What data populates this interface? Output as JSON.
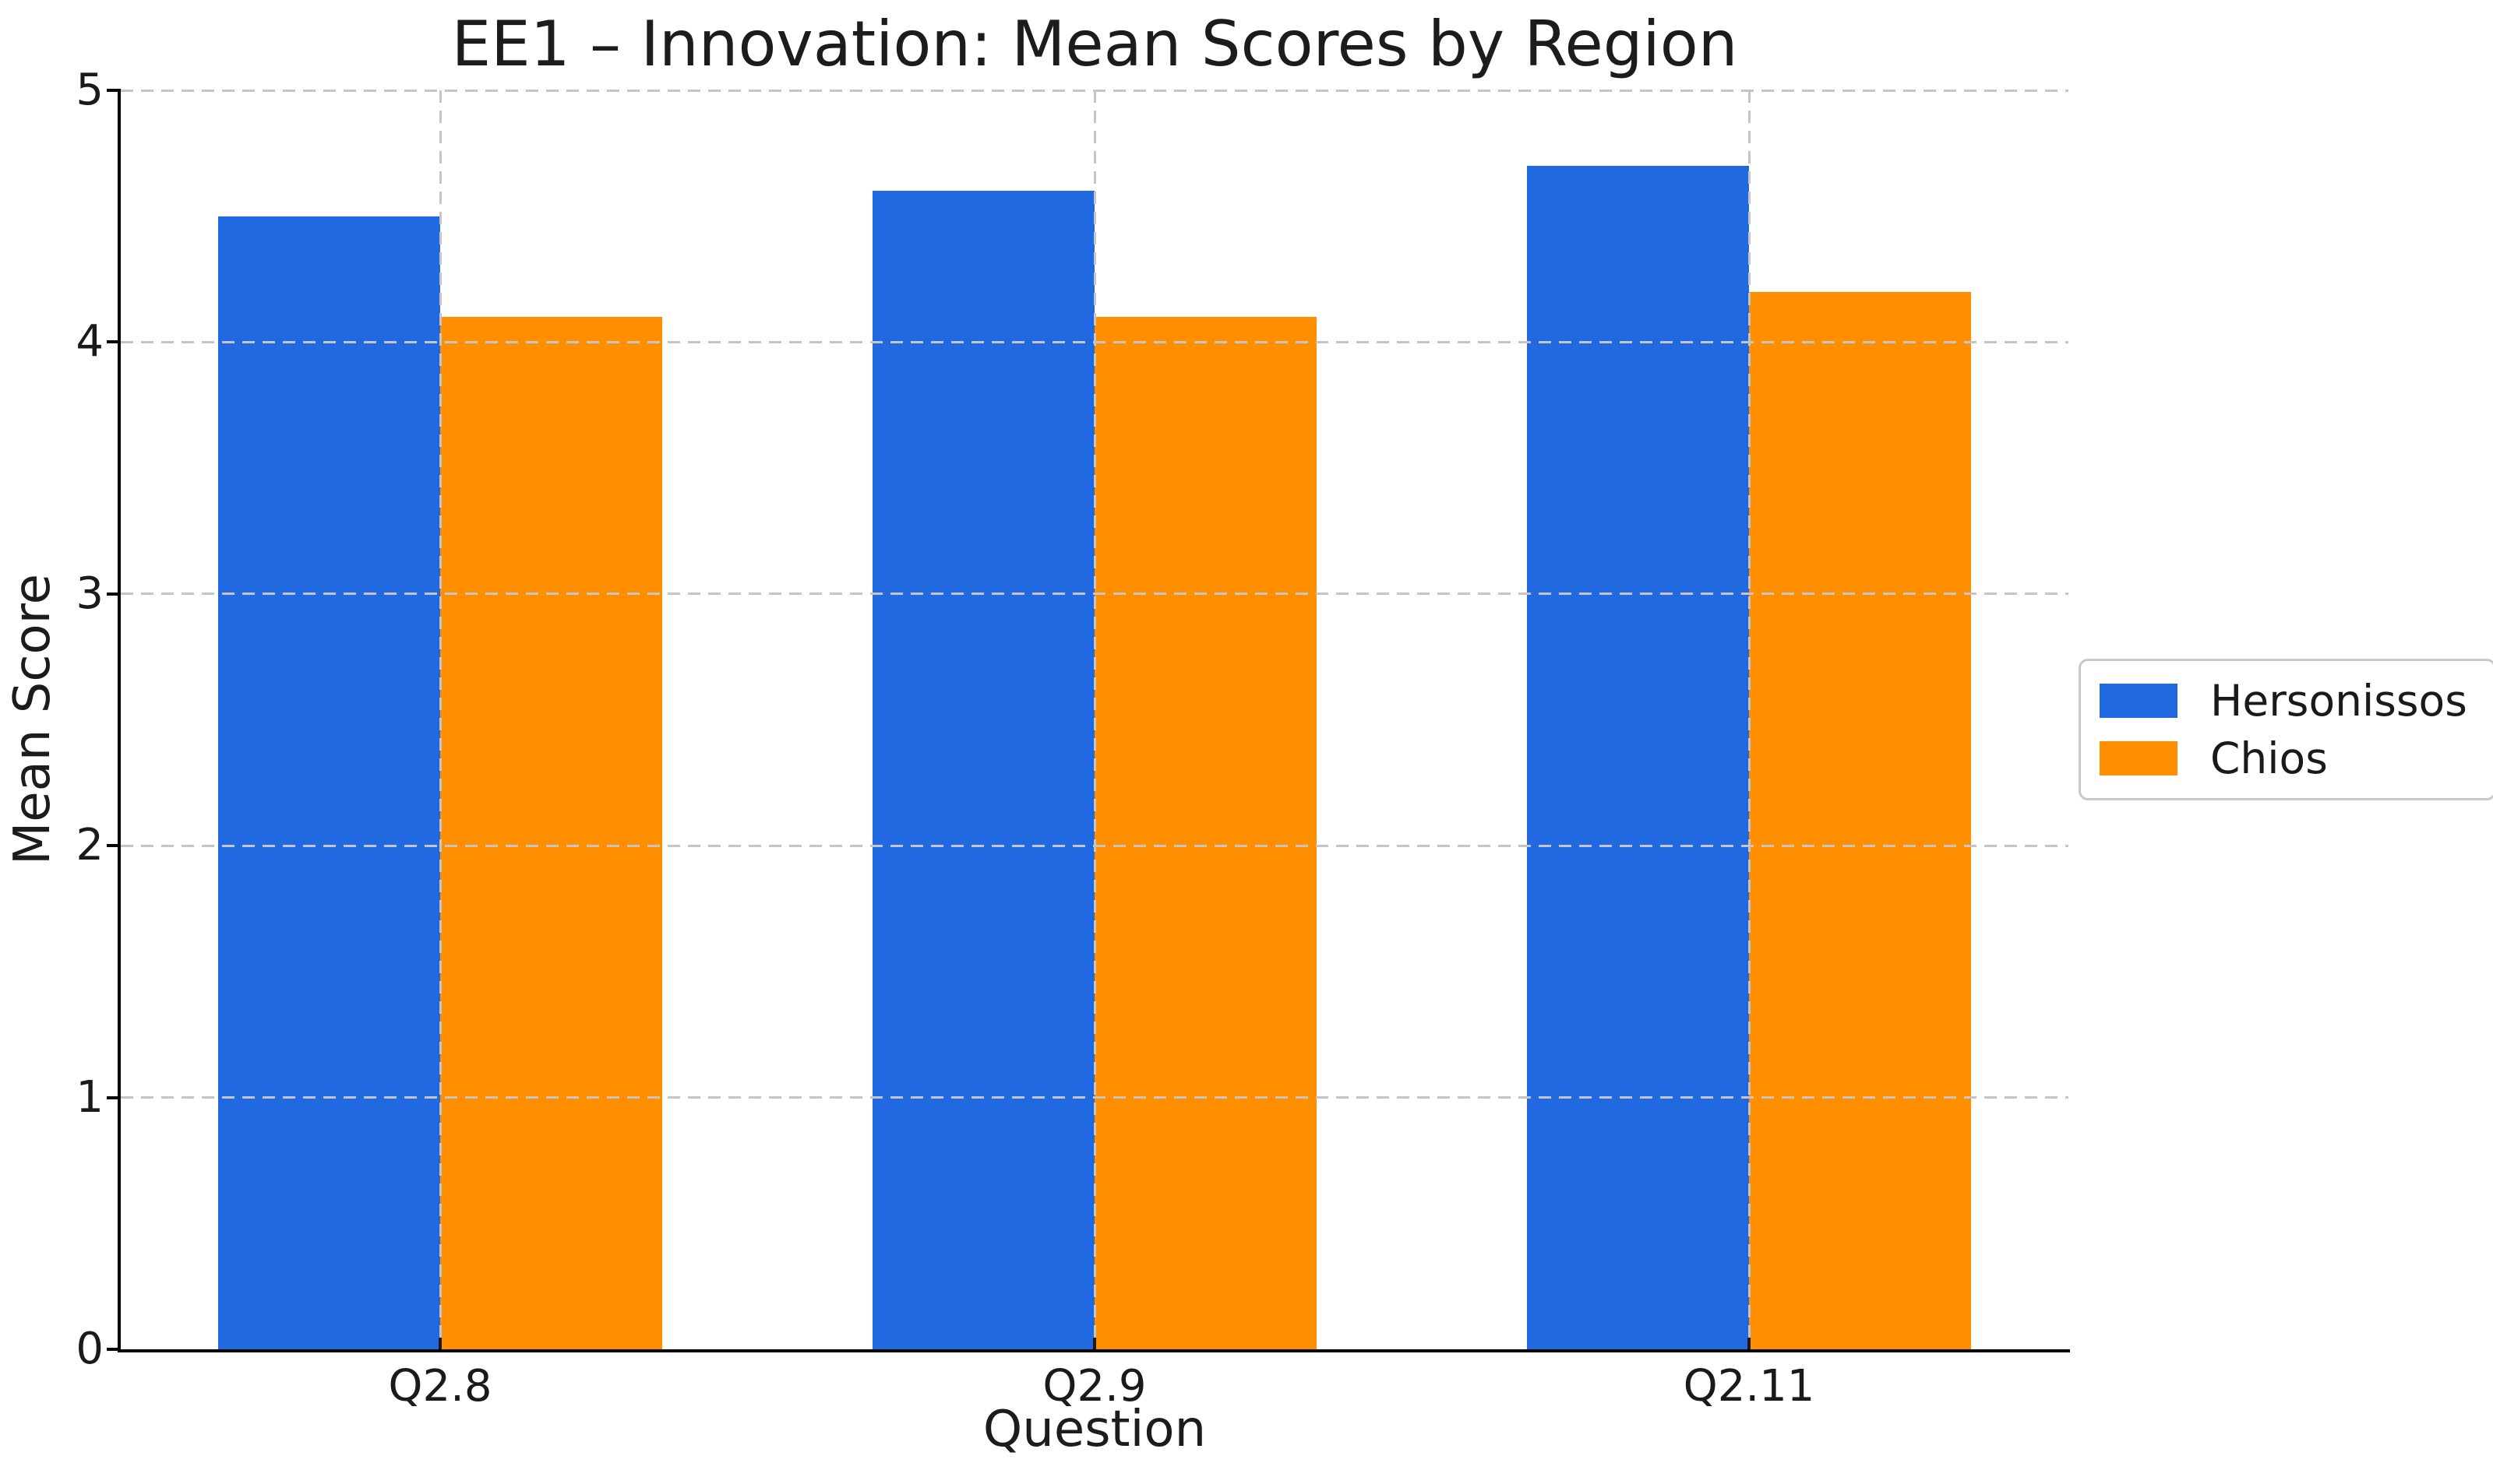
{
  "figure": {
    "background": "#ffffff"
  },
  "chart_data": {
    "type": "bar",
    "title": "EE1 – Innovation: Mean Scores by Region",
    "xlabel": "Question",
    "ylabel": "Mean Score",
    "categories": [
      "Q2.8",
      "Q2.9",
      "Q2.11"
    ],
    "series": [
      {
        "name": "Hersonissos",
        "color": "#2169e1",
        "values": [
          4.5,
          4.6,
          4.7
        ]
      },
      {
        "name": "Chios",
        "color": "#ff8f00",
        "values": [
          4.1,
          4.1,
          4.2
        ]
      }
    ],
    "ylim": [
      0,
      5
    ],
    "yticks": [
      0,
      1,
      2,
      3,
      4,
      5
    ],
    "grid": true,
    "grid_style": "dashed",
    "legend_position": "center right",
    "legend_entries": [
      "Hersonissos",
      "Chios"
    ]
  },
  "style": {
    "axis_color": "#000000",
    "text_color": "#1a1a1a",
    "grid_color": "#c5c5c5",
    "legend_border_color": "#c9c9c9"
  }
}
